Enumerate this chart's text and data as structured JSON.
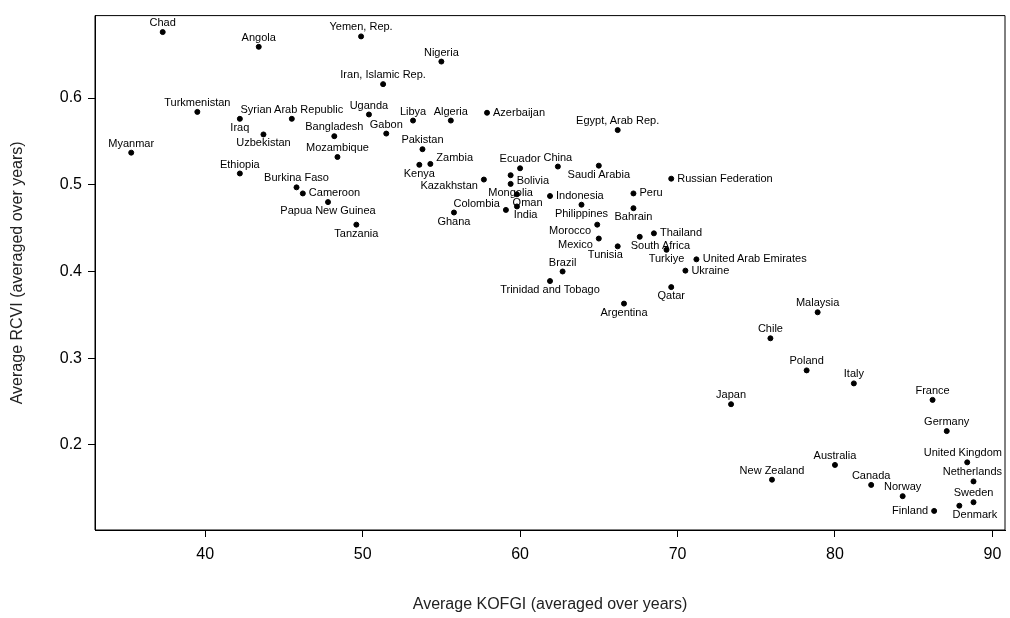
{
  "chart_data": {
    "type": "scatter",
    "xlabel": "Average KOFGI (averaged over years)",
    "ylabel": "Average RCVI (averaged over years)",
    "xlim": [
      33.0,
      90.8
    ],
    "ylim": [
      0.102,
      0.695
    ],
    "xticks": [
      40,
      50,
      60,
      70,
      80,
      90
    ],
    "yticks": [
      0.2,
      0.3,
      0.4,
      0.5,
      0.6
    ],
    "grid": false,
    "legend": false,
    "marker": "circle",
    "series": [
      {
        "color": "#000000",
        "x": [
          37.3,
          43.4,
          49.9,
          55.0,
          51.3,
          39.5,
          42.2,
          45.5,
          50.4,
          53.2,
          55.6,
          57.9,
          43.7,
          48.2,
          51.5,
          35.3,
          53.8,
          48.4,
          53.6,
          54.3,
          42.2,
          66.2,
          60.0,
          62.4,
          65.0,
          57.7,
          59.4,
          59.4,
          69.6,
          67.2,
          59.8,
          61.9,
          45.8,
          46.2,
          47.8,
          63.9,
          67.2,
          59.8,
          59.1,
          55.8,
          49.6,
          64.9,
          68.5,
          67.6,
          65.0,
          66.2,
          69.3,
          71.2,
          70.5,
          62.7,
          61.9,
          69.6,
          66.6,
          78.9,
          75.9,
          78.2,
          81.2,
          73.4,
          86.2,
          87.1,
          88.4,
          80.0,
          76.0,
          88.8,
          82.3,
          84.3,
          88.8,
          87.9,
          86.3
        ],
        "values": [
          0.676,
          0.659,
          0.671,
          0.642,
          0.616,
          0.584,
          0.576,
          0.576,
          0.581,
          0.574,
          0.574,
          0.583,
          0.558,
          0.556,
          0.559,
          0.537,
          0.541,
          0.532,
          0.523,
          0.524,
          0.513,
          0.563,
          0.519,
          0.521,
          0.522,
          0.506,
          0.511,
          0.501,
          0.507,
          0.49,
          0.489,
          0.487,
          0.497,
          0.49,
          0.48,
          0.477,
          0.473,
          0.475,
          0.471,
          0.468,
          0.454,
          0.454,
          0.444,
          0.44,
          0.438,
          0.429,
          0.425,
          0.414,
          0.401,
          0.4,
          0.389,
          0.382,
          0.363,
          0.353,
          0.323,
          0.286,
          0.271,
          0.247,
          0.252,
          0.216,
          0.18,
          0.177,
          0.16,
          0.158,
          0.154,
          0.141,
          0.134,
          0.13,
          0.124
        ],
        "value_labels": [
          "Chad",
          "Angola",
          "Yemen, Rep.",
          "Nigeria",
          "Iran, Islamic Rep.",
          "Turkmenistan",
          "Iraq",
          "Syrian Arab Republic",
          "Uganda",
          "Libya",
          "Algeria",
          "Azerbaijan",
          "Uzbekistan",
          "Bangladesh",
          "Gabon",
          "Myanmar",
          "Pakistan",
          "Mozambique",
          "Kenya",
          "Zambia",
          "Ethiopia",
          "Egypt, Arab Rep.",
          "Ecuador",
          "China",
          "Saudi Arabia",
          "Kazakhstan",
          "Bolivia",
          "Mongolia",
          "Russian Federation",
          "Peru",
          "Oman",
          "Indonesia",
          "Burkina Faso",
          "Cameroon",
          "Papua New Guinea",
          "Philippines",
          "Bahrain",
          "India",
          "Colombia",
          "Ghana",
          "Tanzania",
          "Morocco",
          "Thailand",
          "South Africa",
          "Mexico",
          "Tunisia",
          "Turkiye",
          "United Arab Emirates",
          "Ukraine",
          "Brazil",
          "Trinidad and Tobago",
          "Qatar",
          "Argentina",
          "Malaysia",
          "Chile",
          "Poland",
          "Italy",
          "Japan",
          "France",
          "Germany",
          "United Kingdom",
          "Australia",
          "New Zealand",
          "Netherlands",
          "Canada",
          "Norway",
          "Sweden",
          "Denmark",
          "Finland"
        ]
      }
    ]
  }
}
